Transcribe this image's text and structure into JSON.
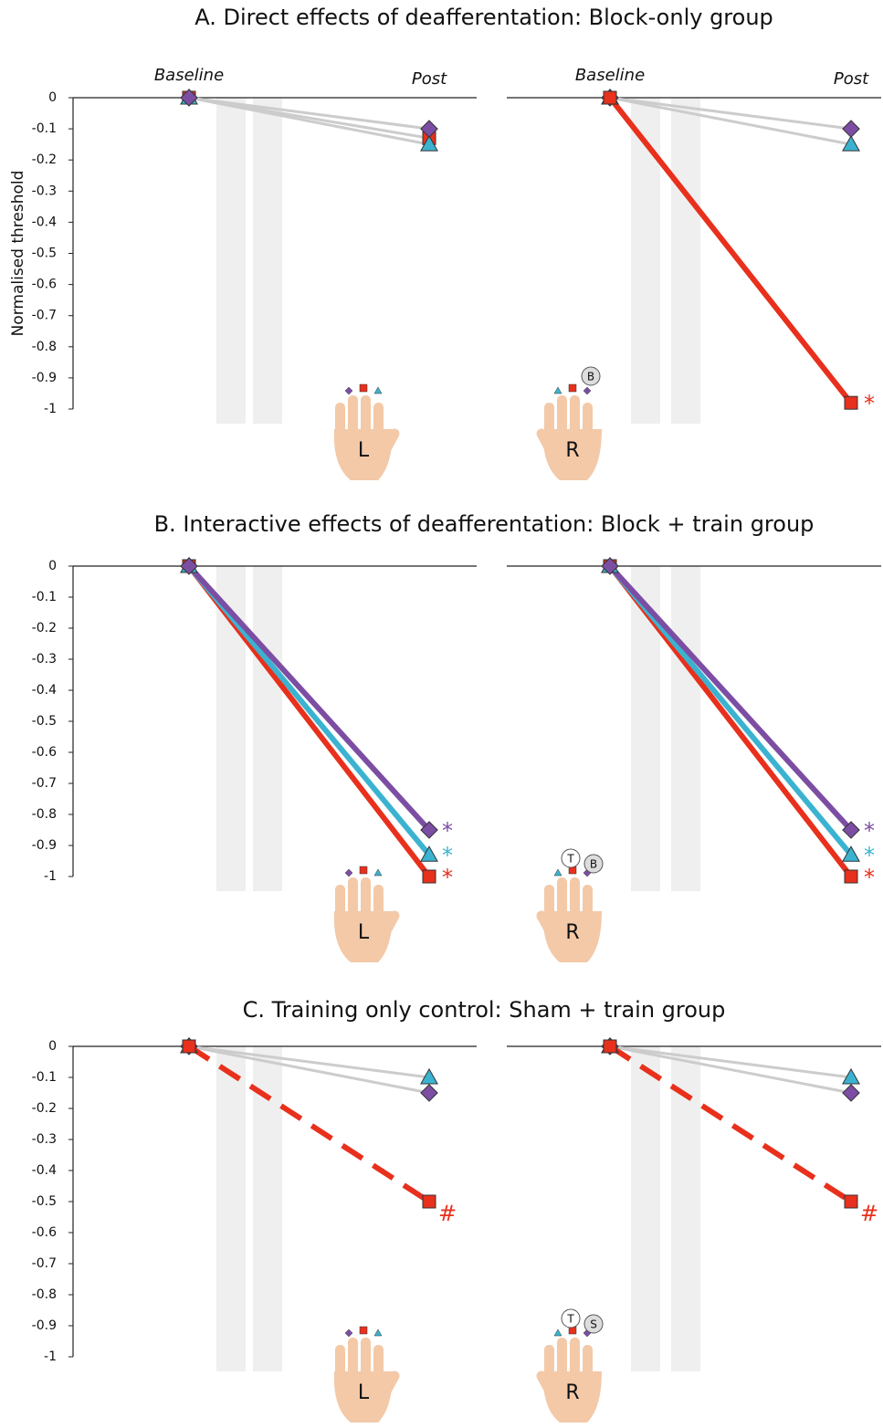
{
  "chart_data": [
    {
      "type": "line",
      "title": "A. Direct effects of deafferentation: Block-only group",
      "y_label": "Normalised threshold",
      "categories": [
        "Baseline",
        "Post"
      ],
      "ylim": [
        -1,
        0
      ],
      "yticks": [
        0,
        -0.1,
        -0.2,
        -0.3,
        -0.4,
        -0.5,
        -0.6,
        -0.7,
        -0.8,
        -0.9,
        -1
      ],
      "hand": "L",
      "series": [
        {
          "color": "#e8301c",
          "marker": "square",
          "line_color": "#cccccc",
          "values": [
            0,
            -0.13
          ]
        },
        {
          "color": "#3bb3d0",
          "marker": "triangle",
          "line_color": "#cccccc",
          "values": [
            0,
            -0.15
          ]
        },
        {
          "color": "#7c4ea3",
          "marker": "diamond",
          "line_color": "#cccccc",
          "values": [
            0,
            -0.1
          ]
        }
      ]
    },
    {
      "type": "line",
      "categories": [
        "Baseline",
        "Post"
      ],
      "ylim": [
        -1,
        0
      ],
      "hand": "R",
      "digit_labels": [
        "B"
      ],
      "series": [
        {
          "color": "#3bb3d0",
          "marker": "triangle",
          "line_color": "#cccccc",
          "values": [
            0,
            -0.15
          ]
        },
        {
          "color": "#7c4ea3",
          "marker": "diamond",
          "line_color": "#cccccc",
          "values": [
            0,
            -0.1
          ]
        },
        {
          "color": "#e8301c",
          "marker": "square",
          "line_color": "#e8301c",
          "values": [
            0,
            -0.98
          ],
          "annotation": "*"
        }
      ]
    },
    {
      "type": "line",
      "title": "B. Interactive effects of deafferentation: Block + train group",
      "categories": [
        null,
        null
      ],
      "ylim": [
        -1,
        0
      ],
      "yticks": [
        0,
        -0.1,
        -0.2,
        -0.3,
        -0.4,
        -0.5,
        -0.6,
        -0.7,
        -0.8,
        -0.9,
        -1
      ],
      "hand": "L",
      "series": [
        {
          "color": "#e8301c",
          "marker": "square",
          "line_color": "#e8301c",
          "values": [
            0,
            -1
          ],
          "annotation": "*"
        },
        {
          "color": "#3bb3d0",
          "marker": "triangle",
          "line_color": "#3bb3d0",
          "values": [
            0,
            -0.93
          ],
          "annotation": "*"
        },
        {
          "color": "#7c4ea3",
          "marker": "diamond",
          "line_color": "#7c4ea3",
          "values": [
            0,
            -0.85
          ],
          "annotation": "*"
        }
      ]
    },
    {
      "type": "line",
      "categories": [
        null,
        null
      ],
      "ylim": [
        -1,
        0
      ],
      "hand": "R",
      "digit_labels": [
        "T",
        "B"
      ],
      "series": [
        {
          "color": "#e8301c",
          "marker": "square",
          "line_color": "#e8301c",
          "values": [
            0,
            -1
          ],
          "annotation": "*"
        },
        {
          "color": "#3bb3d0",
          "marker": "triangle",
          "line_color": "#3bb3d0",
          "values": [
            0,
            -0.93
          ],
          "annotation": "*"
        },
        {
          "color": "#7c4ea3",
          "marker": "diamond",
          "line_color": "#7c4ea3",
          "values": [
            0,
            -0.85
          ],
          "annotation": "*"
        }
      ]
    },
    {
      "type": "line",
      "title": "C. Training only control: Sham + train group",
      "categories": [
        null,
        null
      ],
      "ylim": [
        -1,
        0
      ],
      "yticks": [
        0,
        -0.1,
        -0.2,
        -0.3,
        -0.4,
        -0.5,
        -0.6,
        -0.7,
        -0.8,
        -0.9,
        -1
      ],
      "hand": "L",
      "series": [
        {
          "color": "#3bb3d0",
          "marker": "triangle",
          "line_color": "#cccccc",
          "values": [
            0,
            -0.1
          ]
        },
        {
          "color": "#7c4ea3",
          "marker": "diamond",
          "line_color": "#cccccc",
          "values": [
            0,
            -0.15
          ]
        },
        {
          "color": "#e8301c",
          "marker": "square",
          "line_color": "#e8301c",
          "dashed": true,
          "values": [
            0,
            -0.5
          ],
          "annotation": "#"
        }
      ]
    },
    {
      "type": "line",
      "categories": [
        null,
        null
      ],
      "ylim": [
        -1,
        0
      ],
      "hand": "R",
      "digit_labels": [
        "T",
        "S"
      ],
      "series": [
        {
          "color": "#3bb3d0",
          "marker": "triangle",
          "line_color": "#cccccc",
          "values": [
            0,
            -0.1
          ]
        },
        {
          "color": "#7c4ea3",
          "marker": "diamond",
          "line_color": "#cccccc",
          "values": [
            0,
            -0.15
          ]
        },
        {
          "color": "#e8301c",
          "marker": "square",
          "line_color": "#e8301c",
          "dashed": true,
          "values": [
            0,
            -0.5
          ],
          "annotation": "#"
        }
      ]
    }
  ]
}
